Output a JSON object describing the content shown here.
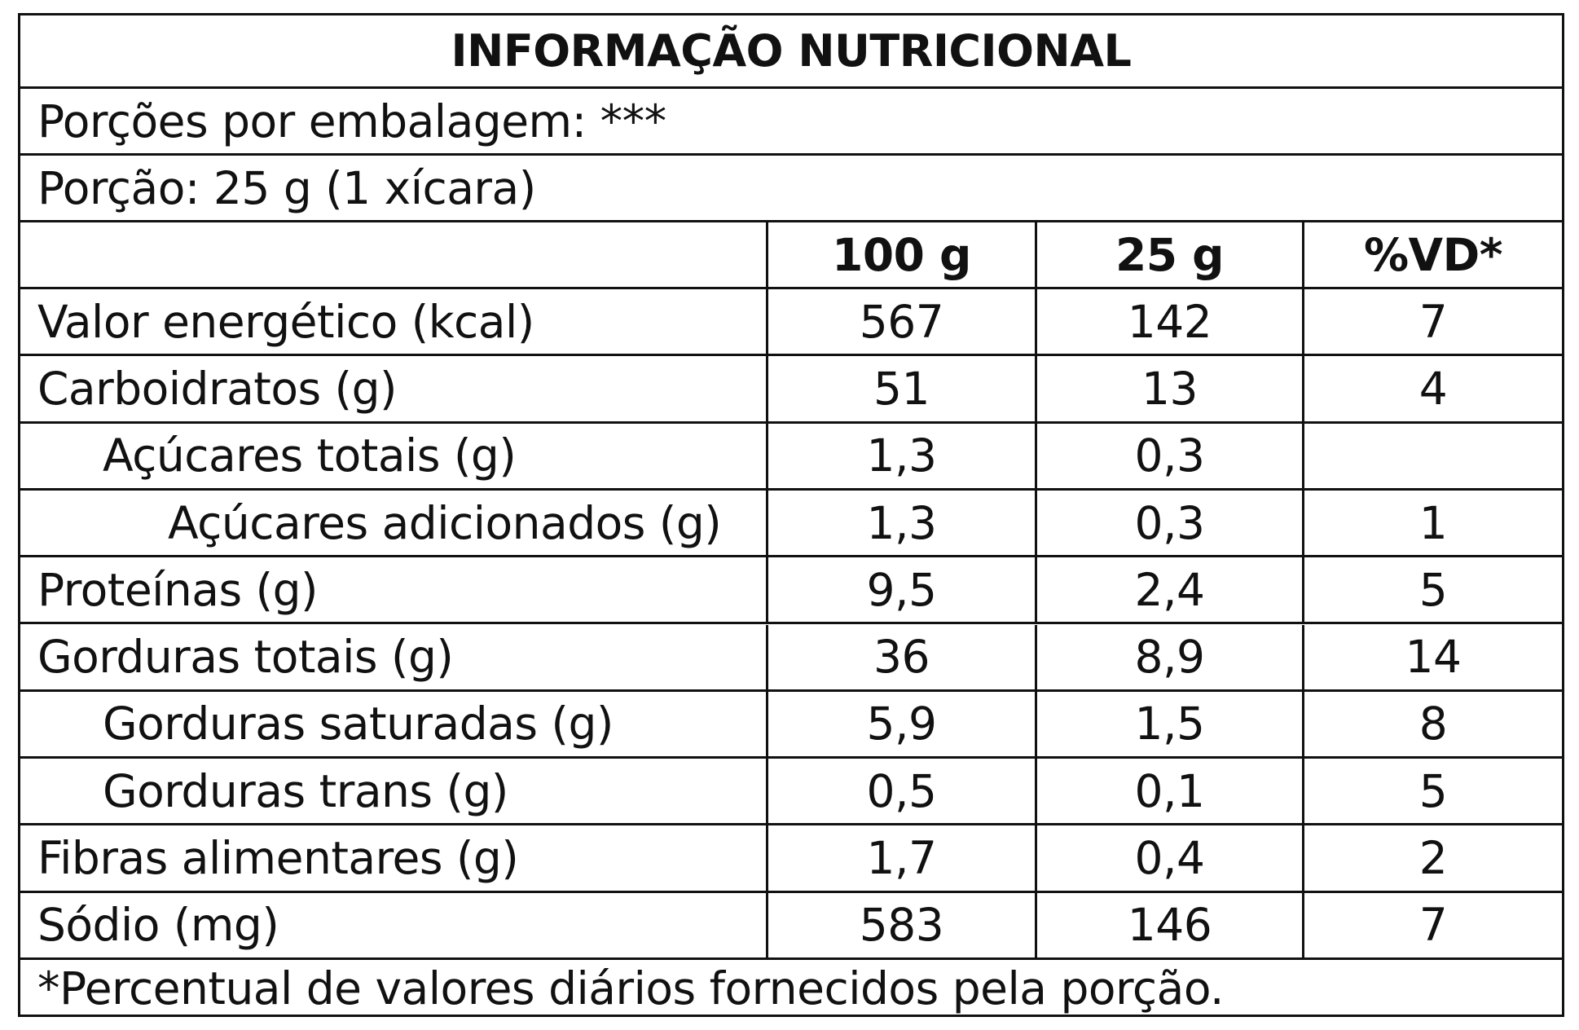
{
  "title": "INFORMAÇÃO NUTRICIONAL",
  "servings_per_package": "Porções por embalagem: ***",
  "serving_size": "Porção: 25 g (1 xícara)",
  "columns": {
    "per_100g": "100 g",
    "per_serving": "25 g",
    "daily_value": "%VD*"
  },
  "nutrients": [
    {
      "name": "Valor energético (kcal)",
      "per_100g": "567",
      "per_serving": "142",
      "dv": "7",
      "indent": 0
    },
    {
      "name": "Carboidratos (g)",
      "per_100g": "51",
      "per_serving": "13",
      "dv": "4",
      "indent": 0
    },
    {
      "name": "Açúcares totais (g)",
      "per_100g": "1,3",
      "per_serving": "0,3",
      "dv": "",
      "indent": 1
    },
    {
      "name": "Açúcares adicionados (g)",
      "per_100g": "1,3",
      "per_serving": "0,3",
      "dv": "1",
      "indent": 2
    },
    {
      "name": "Proteínas (g)",
      "per_100g": "9,5",
      "per_serving": "2,4",
      "dv": "5",
      "indent": 0
    },
    {
      "name": "Gorduras totais (g)",
      "per_100g": "36",
      "per_serving": "8,9",
      "dv": "14",
      "indent": 0
    },
    {
      "name": "Gorduras saturadas (g)",
      "per_100g": "5,9",
      "per_serving": "1,5",
      "dv": "8",
      "indent": 1
    },
    {
      "name": "Gorduras trans (g)",
      "per_100g": "0,5",
      "per_serving": "0,1",
      "dv": "5",
      "indent": 1
    },
    {
      "name": "Fibras alimentares (g)",
      "per_100g": "1,7",
      "per_serving": "0,4",
      "dv": "2",
      "indent": 0
    },
    {
      "name": "Sódio (mg)",
      "per_100g": "583",
      "per_serving": "146",
      "dv": "7",
      "indent": 0
    }
  ],
  "footnote": "*Percentual de valores diários fornecidos pela porção."
}
